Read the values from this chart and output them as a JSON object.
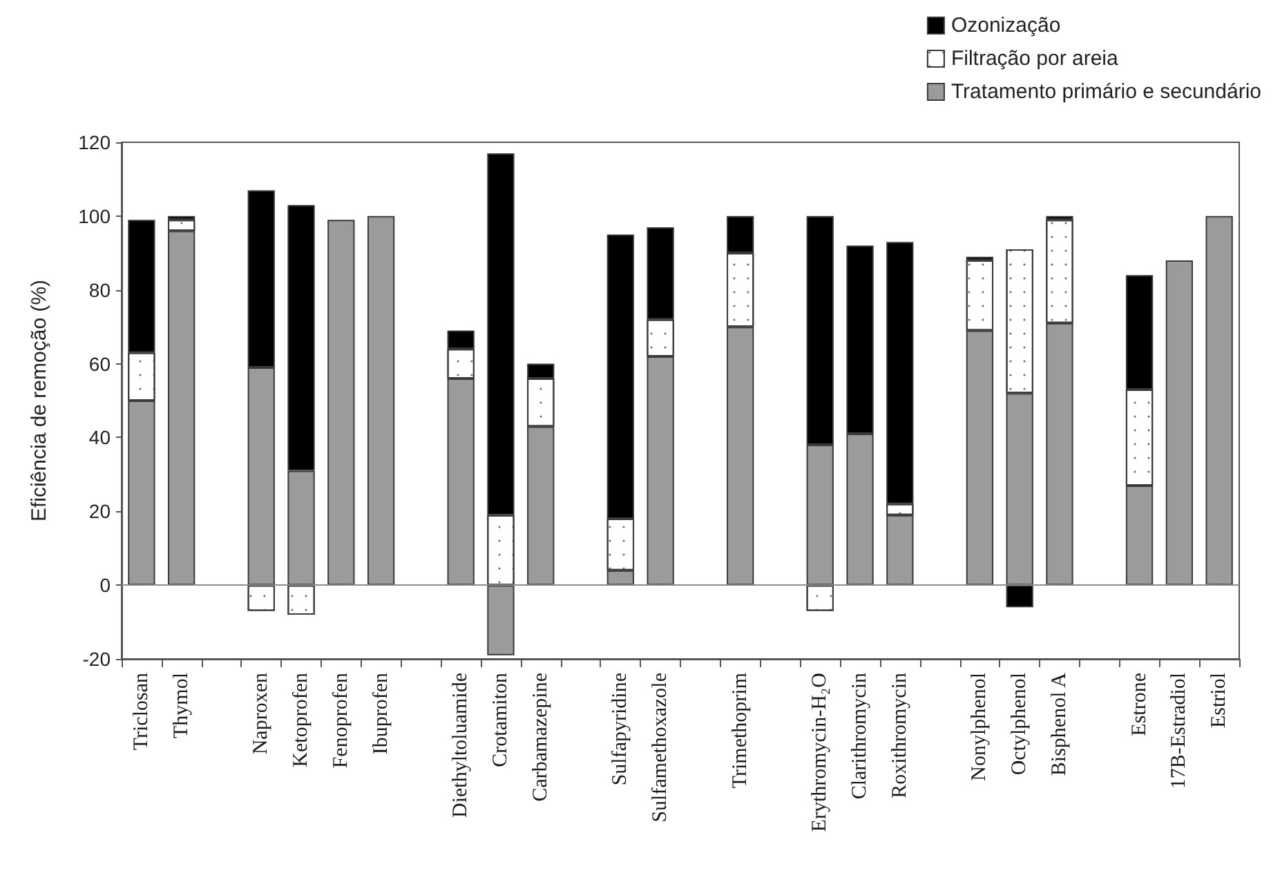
{
  "chart_data": {
    "type": "bar",
    "stacked": true,
    "ylabel": "Eficiência de remoção (%)",
    "categories": [
      "Triclosan",
      "Thymol",
      null,
      "Naproxen",
      "Ketoprofen",
      "Fenoprofen",
      "Ibuprofen",
      null,
      "Diethyltoluamide",
      "Crotamiton",
      "Carbamazepine",
      null,
      "Sulfapyridine",
      "Sulfamethoxazole",
      null,
      "Trimethoprim",
      null,
      "Erythromycin-H₂O",
      "Clarithromycin",
      "Roxithromycin",
      null,
      "Nonylphenol",
      "Octylphenol",
      "Bisphenol A",
      null,
      "Estrone",
      "17B-Estradiol",
      "Estriol"
    ],
    "series": [
      {
        "name": "Tratamento primário e secundário",
        "color": "#9b9b9b",
        "values": [
          50,
          96,
          null,
          59,
          31,
          99,
          100,
          null,
          56,
          -19,
          43,
          null,
          4,
          62,
          null,
          70,
          null,
          38,
          41,
          19,
          null,
          69,
          52,
          71,
          null,
          27,
          88,
          100
        ]
      },
      {
        "name": "Filtração por areia",
        "color": "#ffffff",
        "values": [
          13,
          3,
          null,
          -7,
          -8,
          null,
          null,
          null,
          8,
          19,
          13,
          null,
          14,
          10,
          null,
          20,
          null,
          -7,
          null,
          3,
          null,
          19,
          39,
          28,
          null,
          26,
          null,
          null
        ]
      },
      {
        "name": "Ozonização",
        "color": "#000000",
        "values": [
          36,
          1,
          null,
          48,
          72,
          null,
          null,
          null,
          5,
          98,
          4,
          null,
          77,
          25,
          null,
          10,
          null,
          62,
          51,
          71,
          null,
          1,
          -6,
          1,
          null,
          31,
          null,
          null
        ]
      }
    ],
    "ylim": [
      -20,
      120
    ],
    "yticks": [
      -20,
      0,
      20,
      40,
      60,
      80,
      100,
      120
    ],
    "ref_lines": [
      {
        "axis": "y",
        "value": 0,
        "color": "#8c8c8c"
      }
    ],
    "legend": "top right"
  }
}
